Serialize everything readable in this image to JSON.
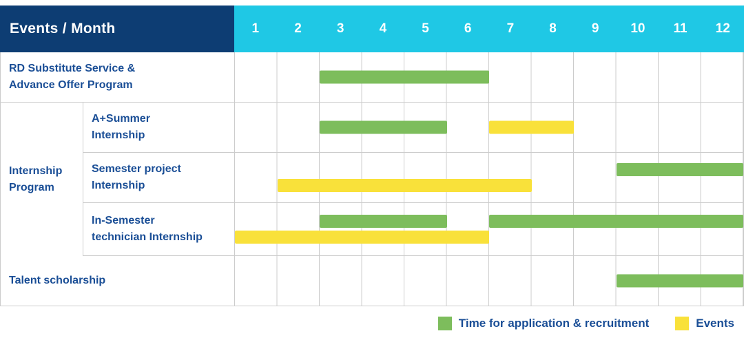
{
  "header": {
    "title": "Events / Month",
    "months": [
      "1",
      "2",
      "3",
      "4",
      "5",
      "6",
      "7",
      "8",
      "9",
      "10",
      "11",
      "12"
    ]
  },
  "group": {
    "label_lines": [
      "Internship",
      "Program"
    ]
  },
  "chart_data": {
    "type": "table",
    "subtype": "gantt",
    "x_unit": "month",
    "x_range": [
      1,
      12
    ],
    "rows": [
      {
        "label_lines": [
          "RD Substitute Service &",
          "Advance Offer Program"
        ],
        "bars": [
          {
            "series": "application",
            "start_month": 3,
            "end_month": 6,
            "lane": "center"
          }
        ]
      },
      {
        "group": "Internship Program",
        "label_lines": [
          "A+Summer",
          "Internship"
        ],
        "bars": [
          {
            "series": "application",
            "start_month": 3,
            "end_month": 5,
            "lane": "center"
          },
          {
            "series": "events",
            "start_month": 7,
            "end_month": 8,
            "lane": "center"
          }
        ]
      },
      {
        "group": "Internship Program",
        "label_lines": [
          "Semester project",
          "Internship"
        ],
        "bars": [
          {
            "series": "application",
            "start_month": 10,
            "end_month": 12,
            "lane": "top"
          },
          {
            "series": "events",
            "start_month": 2,
            "end_month": 7,
            "lane": "bottom"
          }
        ]
      },
      {
        "group": "Internship Program",
        "label_lines": [
          "In-Semester",
          "technician Internship"
        ],
        "bars": [
          {
            "series": "application",
            "start_month": 3,
            "end_month": 5,
            "lane": "top"
          },
          {
            "series": "application",
            "start_month": 7,
            "end_month": 12,
            "lane": "top"
          },
          {
            "series": "events",
            "start_month": 1,
            "end_month": 6,
            "lane": "bottom"
          }
        ]
      },
      {
        "label_lines": [
          "Talent scholarship"
        ],
        "bars": [
          {
            "series": "application",
            "start_month": 10,
            "end_month": 12,
            "lane": "center"
          }
        ]
      }
    ]
  },
  "legend": [
    {
      "series": "application",
      "label": "Time for application & recruitment",
      "color": "#7dbd5c"
    },
    {
      "series": "events",
      "label": "Events",
      "color": "#f9e13a"
    }
  ],
  "colors": {
    "header_bg": "#0d3d73",
    "months_bg": "#1fc8e5",
    "label_text": "#1a4e96",
    "application_green": "#7dbd5c",
    "events_yellow": "#f9e13a",
    "grid_line": "#cccccc"
  }
}
